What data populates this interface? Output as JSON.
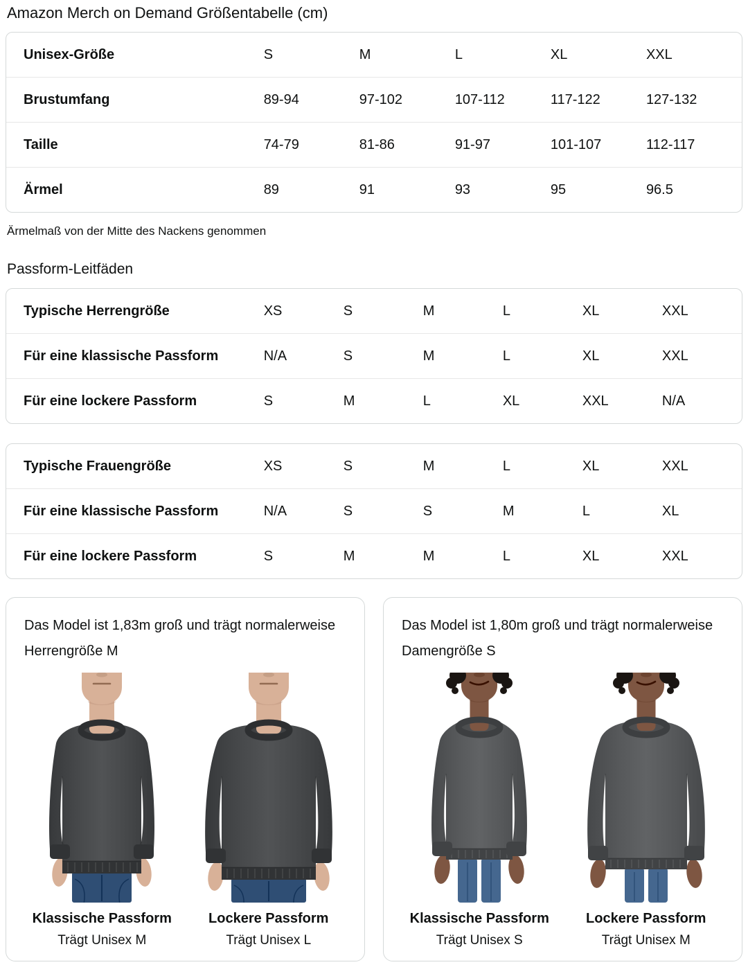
{
  "page": {
    "title": "Amazon Merch on Demand Größentabelle (cm)"
  },
  "colors": {
    "text": "#0f1111",
    "table_border": "#d5d9d9",
    "row_divider": "#e7e7e7"
  },
  "size_table": {
    "rows": [
      {
        "label": "Unisex-Größe",
        "values": [
          "S",
          "M",
          "L",
          "XL",
          "XXL"
        ]
      },
      {
        "label": "Brustumfang",
        "values": [
          "89-94",
          "97-102",
          "107-112",
          "117-122",
          "127-132"
        ]
      },
      {
        "label": "Taille",
        "values": [
          "74-79",
          "81-86",
          "91-97",
          "101-107",
          "112-117"
        ]
      },
      {
        "label": "Ärmel",
        "values": [
          "89",
          "91",
          "93",
          "95",
          "96.5"
        ]
      }
    ],
    "footnote": "Ärmelmaß von der Mitte des Nackens genommen"
  },
  "fit_guides": {
    "heading": "Passform-Leitfäden",
    "tables": [
      {
        "rows": [
          {
            "label": "Typische Herrengröße",
            "values": [
              "XS",
              "S",
              "M",
              "L",
              "XL",
              "XXL"
            ]
          },
          {
            "label": "Für eine klassische Passform",
            "values": [
              "N/A",
              "S",
              "M",
              "L",
              "XL",
              "XXL"
            ]
          },
          {
            "label": "Für eine lockere Passform",
            "values": [
              "S",
              "M",
              "L",
              "XL",
              "XXL",
              "N/A"
            ]
          }
        ]
      },
      {
        "rows": [
          {
            "label": "Typische Frauengröße",
            "values": [
              "XS",
              "S",
              "M",
              "L",
              "XL",
              "XXL"
            ]
          },
          {
            "label": "Für eine klassische Passform",
            "values": [
              "N/A",
              "S",
              "S",
              "M",
              "L",
              "XL"
            ]
          },
          {
            "label": "Für eine lockere Passform",
            "values": [
              "S",
              "M",
              "M",
              "L",
              "XL",
              "XXL"
            ]
          }
        ]
      }
    ]
  },
  "model_cards": [
    {
      "description": "Das Model ist 1,83m groß und trägt normalerweise Herrengröße M",
      "colors": {
        "skin": "#d8b198",
        "sweatshirt": "#47494b",
        "jeans": "#2f4e74",
        "hair": "#8a6a4a"
      },
      "photos": [
        {
          "model": "male",
          "fit": "classic",
          "fit_label": "Klassische Passform",
          "size_label": "Trägt Unisex M"
        },
        {
          "model": "male",
          "fit": "loose",
          "fit_label": "Lockere Passform",
          "size_label": "Trägt Unisex L"
        }
      ]
    },
    {
      "description": "Das Model ist 1,80m groß und trägt normalerweise Damengröße S",
      "colors": {
        "skin": "#7e5642",
        "sweatshirt": "#57595b",
        "jeans": "#45678f",
        "hair": "#1a1512"
      },
      "photos": [
        {
          "model": "female",
          "fit": "classic",
          "fit_label": "Klassische Passform",
          "size_label": "Trägt Unisex S"
        },
        {
          "model": "female",
          "fit": "loose",
          "fit_label": "Lockere Passform",
          "size_label": "Trägt Unisex M"
        }
      ]
    }
  ]
}
